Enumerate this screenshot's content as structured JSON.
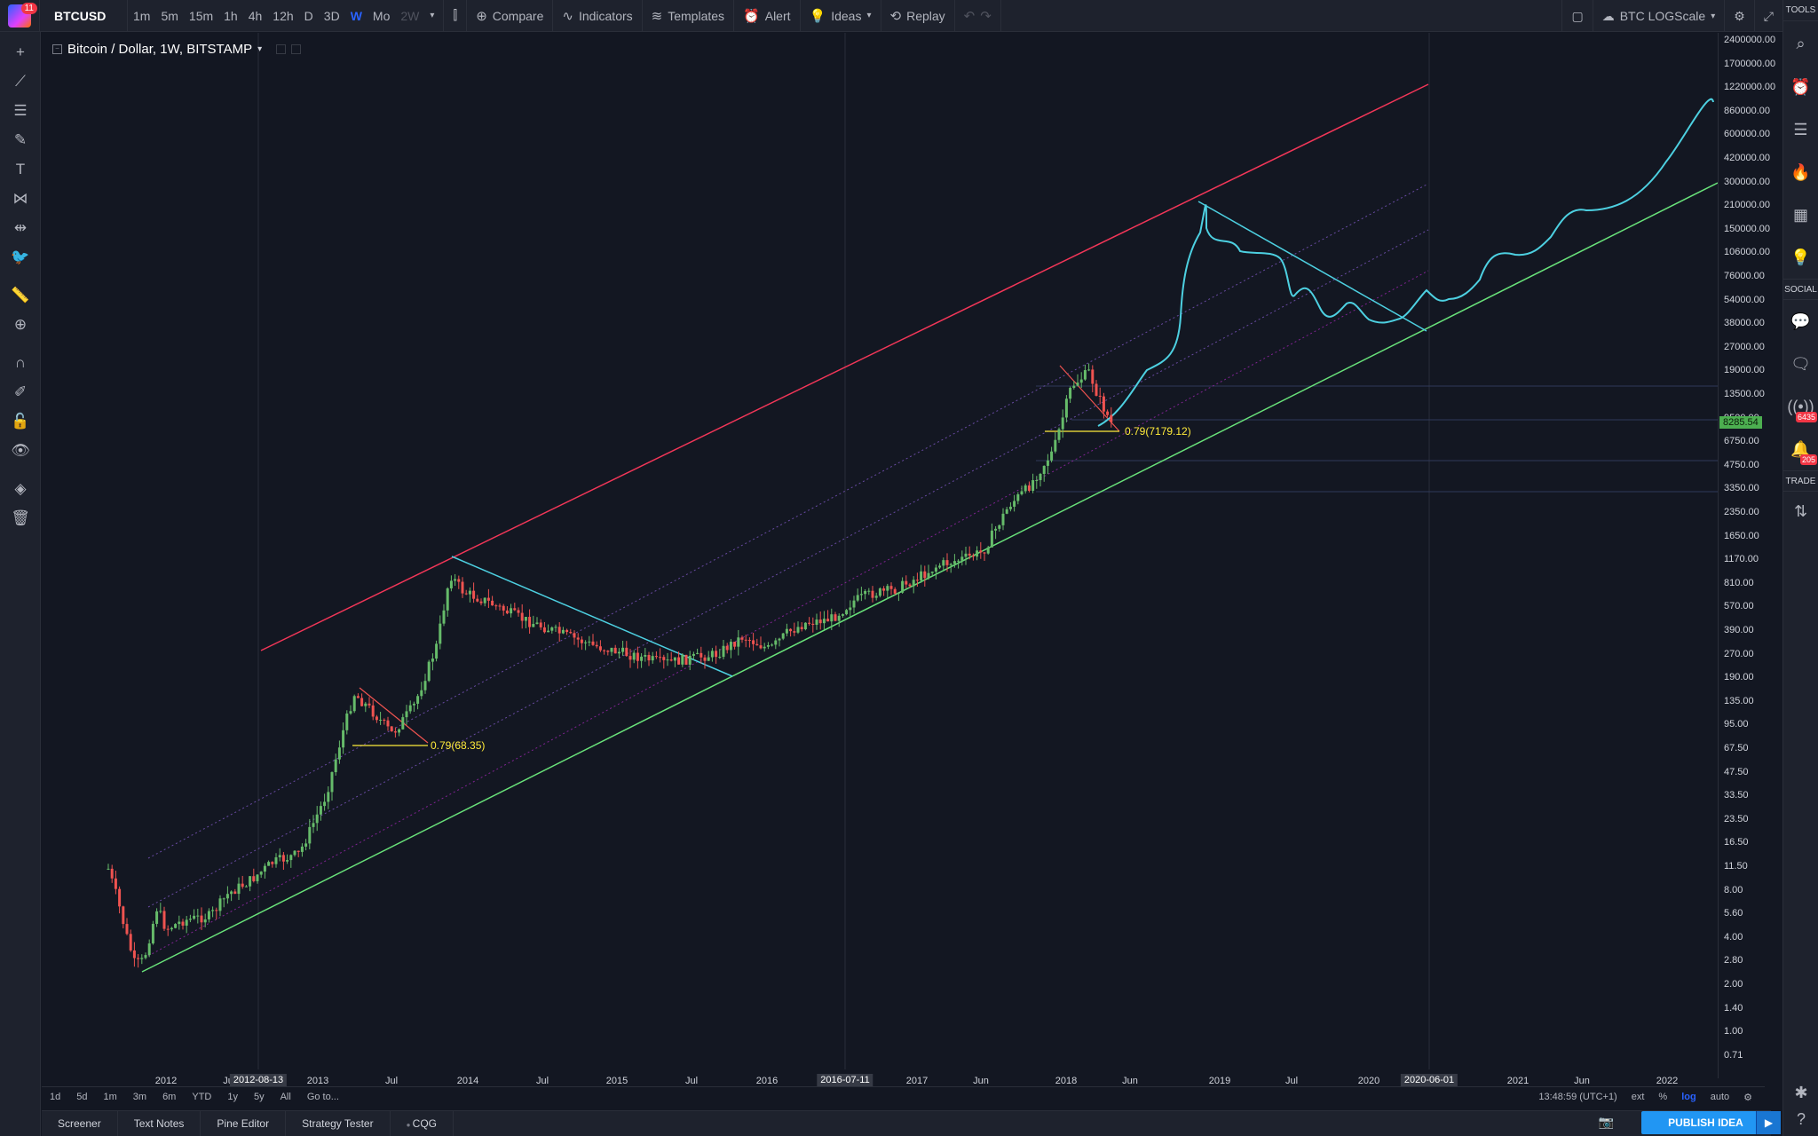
{
  "header": {
    "badge_count": "11",
    "symbol": "BTCUSD",
    "intervals": [
      {
        "label": "1m",
        "state": "normal"
      },
      {
        "label": "5m",
        "state": "normal"
      },
      {
        "label": "15m",
        "state": "normal"
      },
      {
        "label": "1h",
        "state": "normal"
      },
      {
        "label": "4h",
        "state": "normal"
      },
      {
        "label": "12h",
        "state": "normal"
      },
      {
        "label": "D",
        "state": "normal"
      },
      {
        "label": "3D",
        "state": "normal"
      },
      {
        "label": "W",
        "state": "active"
      },
      {
        "label": "Mo",
        "state": "normal"
      },
      {
        "label": "2W",
        "state": "disabled"
      }
    ],
    "compare_label": "Compare",
    "indicators_label": "Indicators",
    "templates_label": "Templates",
    "alert_label": "Alert",
    "ideas_label": "Ideas",
    "replay_label": "Replay",
    "layout_name": "BTC LOGScale"
  },
  "legend": {
    "title": "Bitcoin / Dollar, 1W, BITSTAMP"
  },
  "right_panel": {
    "tools_label": "TOOLS",
    "social_label": "SOCIAL",
    "trade_label": "TRADE",
    "badge_a": "6435",
    "badge_b": "205"
  },
  "price_scale": {
    "labels": [
      "2400000.00",
      "1700000.00",
      "1220000.00",
      "860000.00",
      "600000.00",
      "420000.00",
      "300000.00",
      "210000.00",
      "150000.00",
      "106000.00",
      "76000.00",
      "54000.00",
      "38000.00",
      "27000.00",
      "19000.00",
      "13500.00",
      "9500.00",
      "6750.00",
      "4750.00",
      "3350.00",
      "2350.00",
      "1650.00",
      "1170.00",
      "810.00",
      "570.00",
      "390.00",
      "270.00",
      "190.00",
      "135.00",
      "95.00",
      "67.50",
      "47.50",
      "33.50",
      "23.50",
      "16.50",
      "11.50",
      "8.00",
      "5.60",
      "4.00",
      "2.80",
      "2.00",
      "1.40",
      "1.00",
      "0.71"
    ],
    "current_price": "8285.54"
  },
  "time_scale": {
    "labels": [
      {
        "text": "2012",
        "hl": false
      },
      {
        "text": "Ju",
        "hl": false
      },
      {
        "text": "2012-08-13",
        "hl": true
      },
      {
        "text": "2013",
        "hl": false
      },
      {
        "text": "Jul",
        "hl": false
      },
      {
        "text": "2014",
        "hl": false
      },
      {
        "text": "Jul",
        "hl": false
      },
      {
        "text": "2015",
        "hl": false
      },
      {
        "text": "Jul",
        "hl": false
      },
      {
        "text": "2016",
        "hl": false
      },
      {
        "text": "2016-07-11",
        "hl": true
      },
      {
        "text": "2017",
        "hl": false
      },
      {
        "text": "Jun",
        "hl": false
      },
      {
        "text": "2018",
        "hl": false
      },
      {
        "text": "Jun",
        "hl": false
      },
      {
        "text": "2019",
        "hl": false
      },
      {
        "text": "Jul",
        "hl": false
      },
      {
        "text": "2020",
        "hl": false
      },
      {
        "text": "2020-06-01",
        "hl": true
      },
      {
        "text": "2021",
        "hl": false
      },
      {
        "text": "Jun",
        "hl": false
      },
      {
        "text": "2022",
        "hl": false
      }
    ]
  },
  "annotations": {
    "fib_1": "0.79(68.35)",
    "fib_2": "0.79(7179.12)"
  },
  "range_bar": {
    "ranges": [
      "1d",
      "5d",
      "1m",
      "3m",
      "6m",
      "YTD",
      "1y",
      "5y",
      "All"
    ],
    "goto_label": "Go to...",
    "clock": "13:48:59 (UTC+1)",
    "ext_label": "ext",
    "pct_label": "%",
    "log_label": "log",
    "auto_label": "auto"
  },
  "bottom_tabs": [
    "Screener",
    "Text Notes",
    "Pine Editor",
    "Strategy Tester",
    "CQG"
  ],
  "publish_label": "PUBLISH IDEA",
  "colors": {
    "background": "#131722",
    "panel": "#1e222d",
    "up_candle": "#66bb6a",
    "down_candle": "#ef5350",
    "channel_top": "#f23658",
    "channel_bottom": "#69e27a",
    "trendline": "#4dd0e1",
    "fib": "#ffeb3b",
    "accent": "#2962ff"
  }
}
